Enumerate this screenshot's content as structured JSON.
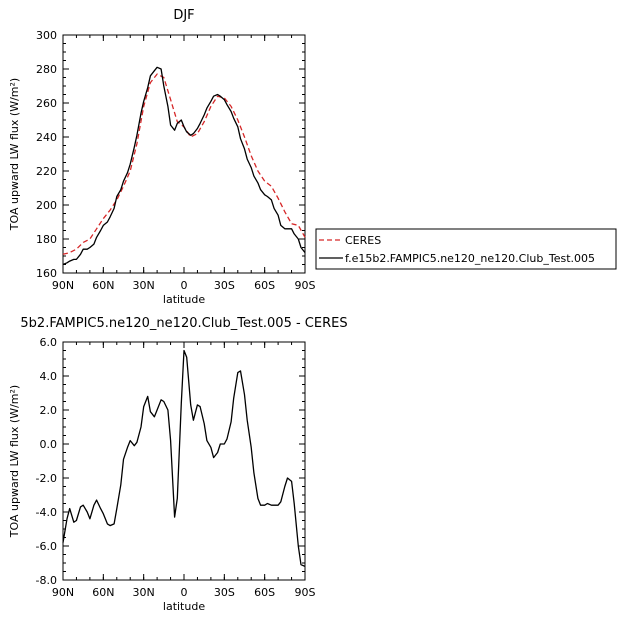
{
  "chart_data": [
    {
      "type": "line",
      "title": "DJF",
      "xlabel": "latitude",
      "ylabel": "TOA upward LW flux (W/m²)",
      "xlim": [
        90,
        -90
      ],
      "ylim": [
        160,
        300
      ],
      "x_ticks": [
        90,
        60,
        30,
        0,
        -30,
        -60,
        -90
      ],
      "x_tick_labels": [
        "90N",
        "60N",
        "30N",
        "0",
        "30S",
        "60S",
        "90S"
      ],
      "y_ticks": [
        160,
        180,
        200,
        220,
        240,
        260,
        280,
        300
      ],
      "y_tick_labels": [
        "160",
        "180",
        "200",
        "220",
        "240",
        "260",
        "280",
        "300"
      ],
      "legend_position": "right",
      "series": [
        {
          "name": "CERES",
          "color": "#d62728",
          "dash": true,
          "x": [
            90,
            85,
            80,
            75,
            70,
            65,
            60,
            55,
            50,
            45,
            40,
            35,
            30,
            25,
            20,
            15,
            10,
            5,
            0,
            -5,
            -10,
            -15,
            -20,
            -25,
            -30,
            -35,
            -40,
            -45,
            -50,
            -55,
            -60,
            -65,
            -70,
            -75,
            -80,
            -85,
            -90
          ],
          "y": [
            171,
            172,
            174,
            178,
            180,
            186,
            192,
            197,
            203,
            211,
            220,
            236,
            258,
            272,
            277,
            275,
            262,
            249,
            246,
            240,
            242,
            249,
            258,
            264,
            263,
            258,
            250,
            240,
            229,
            220,
            214,
            211,
            204,
            196,
            189,
            188,
            181
          ]
        },
        {
          "name": "f.e15b2.FAMPIC5.ne120_ne120.Club_Test.005",
          "color": "#000000",
          "dash": false,
          "x": [
            90,
            87,
            85,
            82,
            80,
            77,
            75,
            72,
            70,
            67,
            65,
            62,
            60,
            57,
            55,
            52,
            50,
            47,
            45,
            42,
            40,
            37,
            35,
            32,
            30,
            27,
            25,
            22,
            20,
            17,
            15,
            12,
            10,
            7,
            5,
            2,
            0,
            -2,
            -5,
            -7,
            -10,
            -12,
            -15,
            -17,
            -20,
            -22,
            -25,
            -27,
            -30,
            -32,
            -35,
            -37,
            -40,
            -42,
            -45,
            -47,
            -50,
            -52,
            -55,
            -57,
            -60,
            -62,
            -65,
            -67,
            -70,
            -72,
            -75,
            -77,
            -80,
            -82,
            -85,
            -87,
            -90
          ],
          "y": [
            165,
            166,
            167,
            168,
            168,
            171,
            174,
            174,
            175,
            177,
            181,
            185,
            188,
            190,
            193,
            198,
            205,
            209,
            214,
            219,
            224,
            234,
            241,
            254,
            261,
            269,
            276,
            279,
            281,
            280,
            270,
            258,
            247,
            244,
            248,
            250,
            246,
            243,
            241,
            242,
            245,
            248,
            253,
            257,
            261,
            264,
            265,
            264,
            262,
            259,
            255,
            251,
            246,
            239,
            233,
            227,
            222,
            217,
            213,
            209,
            206,
            205,
            203,
            198,
            194,
            188,
            186,
            186,
            186,
            183,
            180,
            175,
            172
          ]
        }
      ]
    },
    {
      "type": "line",
      "title": "5b2.FAMPIC5.ne120_ne120.Club_Test.005 - CERES",
      "xlabel": "latitude",
      "ylabel": "TOA upward LW flux (W/m²)",
      "xlim": [
        90,
        -90
      ],
      "ylim": [
        -8,
        6
      ],
      "x_ticks": [
        90,
        60,
        30,
        0,
        -30,
        -60,
        -90
      ],
      "x_tick_labels": [
        "90N",
        "60N",
        "30N",
        "0",
        "30S",
        "60S",
        "90S"
      ],
      "y_ticks": [
        -8,
        -6,
        -4,
        -2,
        0,
        2,
        4,
        6
      ],
      "y_tick_labels": [
        "-8.0",
        "-6.0",
        "-4.0",
        "-2.0",
        "0.0",
        "2.0",
        "4.0",
        "6.0"
      ],
      "series": [
        {
          "color": "#000000",
          "dash": false,
          "x": [
            90,
            87,
            85,
            82,
            80,
            77,
            75,
            72,
            70,
            67,
            65,
            62,
            60,
            57,
            55,
            52,
            50,
            47,
            45,
            42,
            40,
            37,
            35,
            32,
            30,
            27,
            25,
            22,
            20,
            17,
            15,
            12,
            10,
            7,
            5,
            2,
            0,
            -2,
            -5,
            -7,
            -10,
            -12,
            -15,
            -17,
            -20,
            -22,
            -25,
            -27,
            -30,
            -32,
            -35,
            -37,
            -40,
            -42,
            -45,
            -47,
            -50,
            -52,
            -55,
            -57,
            -60,
            -62,
            -65,
            -67,
            -70,
            -72,
            -75,
            -77,
            -80,
            -82,
            -85,
            -87,
            -90
          ],
          "y": [
            -5.8,
            -4.4,
            -3.8,
            -4.6,
            -4.5,
            -3.7,
            -3.6,
            -4.0,
            -4.4,
            -3.6,
            -3.3,
            -3.8,
            -4.1,
            -4.7,
            -4.8,
            -4.7,
            -3.8,
            -2.4,
            -0.9,
            -0.2,
            0.2,
            -0.1,
            0.1,
            1.0,
            2.2,
            2.8,
            1.9,
            1.6,
            2.0,
            2.6,
            2.5,
            2.0,
            0.2,
            -4.3,
            -3.2,
            2.4,
            5.5,
            5.1,
            2.3,
            1.4,
            2.3,
            2.2,
            1.2,
            0.2,
            -0.2,
            -0.8,
            -0.5,
            0.0,
            0.0,
            0.3,
            1.3,
            2.7,
            4.2,
            4.3,
            2.9,
            1.4,
            -0.2,
            -1.7,
            -3.2,
            -3.6,
            -3.6,
            -3.5,
            -3.6,
            -3.6,
            -3.6,
            -3.4,
            -2.5,
            -2.0,
            -2.2,
            -3.5,
            -6.0,
            -7.1,
            -7.2
          ]
        }
      ]
    }
  ]
}
